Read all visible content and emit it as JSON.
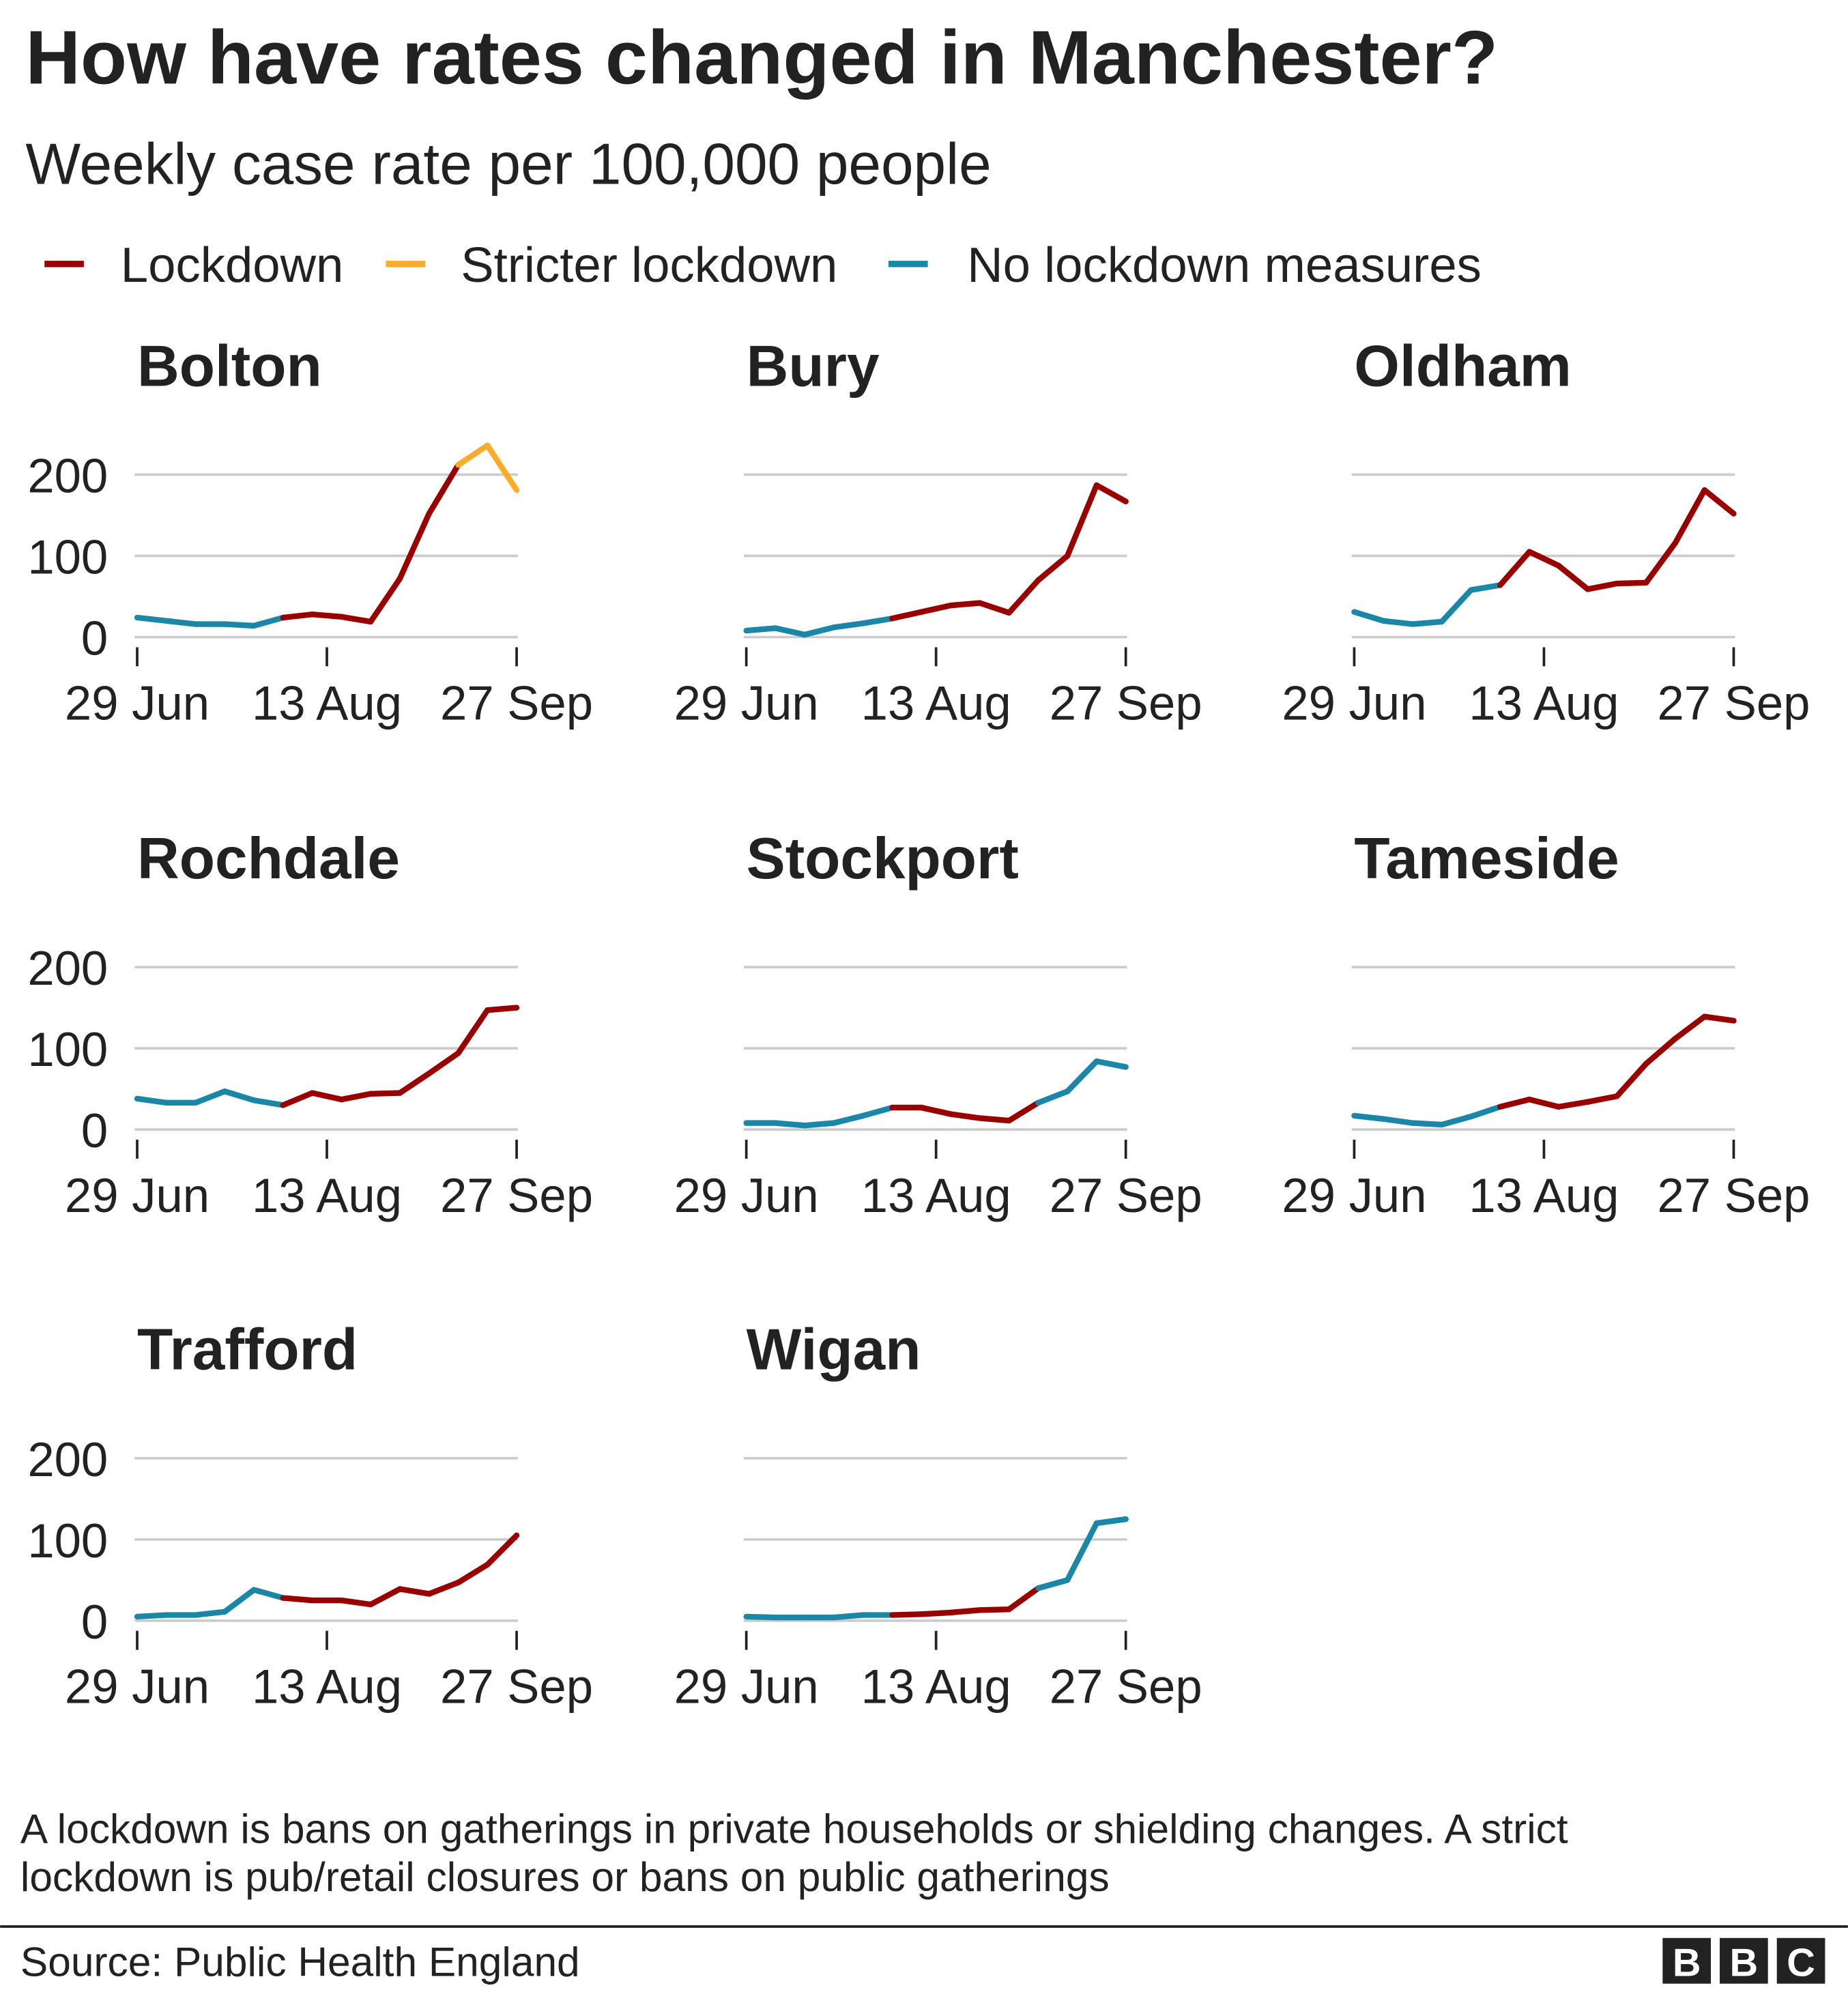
{
  "title": "How have rates changed in Manchester?",
  "subtitle": "Weekly case rate per 100,000 people",
  "legend": [
    {
      "key": "L",
      "label": "Lockdown",
      "color": "#990000"
    },
    {
      "key": "S",
      "label": "Stricter lockdown",
      "color": "#fdac2a"
    },
    {
      "key": "N",
      "label": "No lockdown measures",
      "color": "#1a86a8"
    }
  ],
  "footnote": [
    "A lockdown is bans on gatherings in private households or shielding changes. A strict",
    "lockdown is pub/retail closures or bans on public gatherings"
  ],
  "source": "Source: Public Health England",
  "logo": [
    "B",
    "B",
    "C"
  ],
  "chart_data": {
    "type": "line",
    "x_note_dates": [
      "29 Jun",
      "6 Jul",
      "13 Jul",
      "20 Jul",
      "27 Jul",
      "3 Aug",
      "10 Aug",
      "17 Aug",
      "24 Aug",
      "31 Aug",
      "7 Sep",
      "14 Sep",
      "21 Sep",
      "28 Sep"
    ],
    "x_ticks": [
      "29 Jun",
      "13 Aug",
      "27 Sep"
    ],
    "y_ticks": [
      0,
      100,
      200
    ],
    "ylim": [
      0,
      240
    ],
    "grid": true,
    "legend_placement": "top",
    "panels": [
      {
        "name": "Bolton",
        "values": [
          24,
          20,
          16,
          16,
          14,
          24,
          28,
          25,
          19,
          72,
          152,
          212,
          236,
          181
        ],
        "status": [
          "N",
          "N",
          "N",
          "N",
          "N",
          "L",
          "L",
          "L",
          "L",
          "L",
          "L",
          "S",
          "S"
        ]
      },
      {
        "name": "Bury",
        "values": [
          8,
          11,
          3,
          12,
          17,
          23,
          31,
          39,
          42,
          30,
          70,
          100,
          187,
          167
        ],
        "status": [
          "N",
          "N",
          "N",
          "N",
          "N",
          "L",
          "L",
          "L",
          "L",
          "L",
          "L",
          "L",
          "L"
        ]
      },
      {
        "name": "Oldham",
        "values": [
          31,
          20,
          16,
          19,
          58,
          64,
          105,
          88,
          59,
          66,
          67,
          116,
          181,
          152
        ],
        "status": [
          "N",
          "N",
          "N",
          "N",
          "N",
          "L",
          "L",
          "L",
          "L",
          "L",
          "L",
          "L",
          "L"
        ]
      },
      {
        "name": "Rochdale",
        "values": [
          38,
          33,
          33,
          47,
          36,
          30,
          45,
          37,
          44,
          45,
          69,
          94,
          147,
          150
        ],
        "status": [
          "N",
          "N",
          "N",
          "N",
          "N",
          "L",
          "L",
          "L",
          "L",
          "L",
          "L",
          "L",
          "L"
        ]
      },
      {
        "name": "Stockport",
        "values": [
          8,
          8,
          5,
          8,
          17,
          27,
          27,
          19,
          14,
          11,
          33,
          47,
          84,
          77
        ],
        "status": [
          "N",
          "N",
          "N",
          "N",
          "N",
          "L",
          "L",
          "L",
          "L",
          "L",
          "N",
          "N",
          "N"
        ]
      },
      {
        "name": "Tameside",
        "values": [
          17,
          13,
          8,
          6,
          16,
          28,
          37,
          28,
          34,
          41,
          81,
          112,
          139,
          134
        ],
        "status": [
          "N",
          "N",
          "N",
          "N",
          "N",
          "L",
          "L",
          "L",
          "L",
          "L",
          "L",
          "L",
          "L"
        ]
      },
      {
        "name": "Trafford",
        "values": [
          5,
          7,
          7,
          11,
          38,
          28,
          25,
          25,
          20,
          39,
          33,
          47,
          69,
          105
        ],
        "status": [
          "N",
          "N",
          "N",
          "N",
          "N",
          "L",
          "L",
          "L",
          "L",
          "L",
          "L",
          "L",
          "L"
        ]
      },
      {
        "name": "Wigan",
        "values": [
          5,
          4,
          4,
          4,
          7,
          7,
          8,
          10,
          13,
          14,
          40,
          50,
          120,
          125
        ],
        "status": [
          "N",
          "N",
          "N",
          "N",
          "N",
          "L",
          "L",
          "L",
          "L",
          "L",
          "N",
          "N",
          "N"
        ]
      }
    ]
  }
}
